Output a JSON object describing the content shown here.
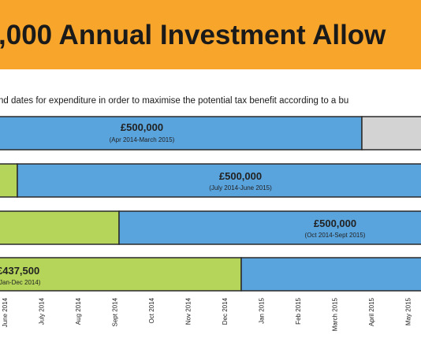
{
  "header": {
    "title": ",000 Annual Investment Allow"
  },
  "subtitle": "nd dates for expenditure in order to maximise the potential tax benefit according to a bu",
  "rows": [
    {
      "amount": "£500,000",
      "period": "(Apr 2014-March 2015)"
    },
    {
      "amount": "£500,000",
      "period": "(July 2014-June 2015)"
    },
    {
      "amount": "£500,000",
      "period": "(Oct 2014-Sept 2015)"
    },
    {
      "amount": "£437,500",
      "period": "Jan-Dec 2014)"
    }
  ],
  "months": [
    "June 2014",
    "July 2014",
    "Aug 2014",
    "Sept 2014",
    "Oct 2014",
    "Nov 2014",
    "Dec 2014",
    "Jan 2015",
    "Feb 2015",
    "March 2015",
    "April 2015",
    "May 2015"
  ]
}
